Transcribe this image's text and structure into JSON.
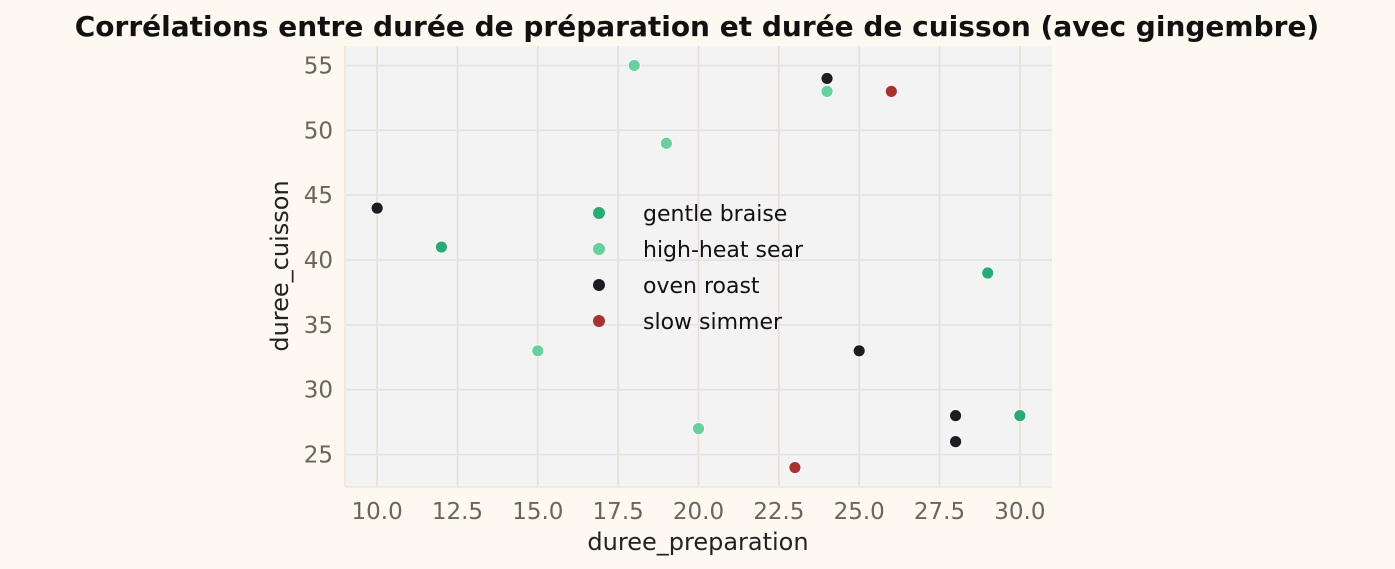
{
  "chart_data": {
    "type": "scatter",
    "title": "Corrélations entre durée de préparation et durée de cuisson (avec gingembre)",
    "xlabel": "duree_preparation",
    "ylabel": "duree_cuisson",
    "xlim": [
      9,
      31
    ],
    "ylim": [
      22.5,
      56.5
    ],
    "xticks": [
      10.0,
      12.5,
      15.0,
      17.5,
      20.0,
      22.5,
      25.0,
      27.5,
      30.0
    ],
    "xtick_labels": [
      "10.0",
      "12.5",
      "15.0",
      "17.5",
      "20.0",
      "22.5",
      "25.0",
      "27.5",
      "30.0"
    ],
    "yticks": [
      25,
      30,
      35,
      40,
      45,
      50,
      55
    ],
    "ytick_labels": [
      "25",
      "30",
      "35",
      "40",
      "45",
      "50",
      "55"
    ],
    "grid": true,
    "legend_position": "center",
    "background_color": "#fdf8f0",
    "plot_background_color": "#f3f3f3",
    "series": [
      {
        "name": "gentle braise",
        "color": "#2aaa76",
        "points": [
          {
            "x": 12,
            "y": 41
          },
          {
            "x": 29,
            "y": 39
          },
          {
            "x": 30,
            "y": 28
          }
        ]
      },
      {
        "name": "high-heat sear",
        "color": "#66d19e",
        "points": [
          {
            "x": 18,
            "y": 55
          },
          {
            "x": 19,
            "y": 49
          },
          {
            "x": 24,
            "y": 53
          },
          {
            "x": 15,
            "y": 33
          },
          {
            "x": 20,
            "y": 27
          }
        ]
      },
      {
        "name": "oven roast",
        "color": "#1c1c22",
        "points": [
          {
            "x": 10,
            "y": 44
          },
          {
            "x": 24,
            "y": 54
          },
          {
            "x": 25,
            "y": 33
          },
          {
            "x": 28,
            "y": 28
          },
          {
            "x": 28,
            "y": 26
          }
        ]
      },
      {
        "name": "slow simmer",
        "color": "#a83232",
        "points": [
          {
            "x": 26,
            "y": 53
          },
          {
            "x": 23,
            "y": 24
          }
        ]
      }
    ]
  }
}
